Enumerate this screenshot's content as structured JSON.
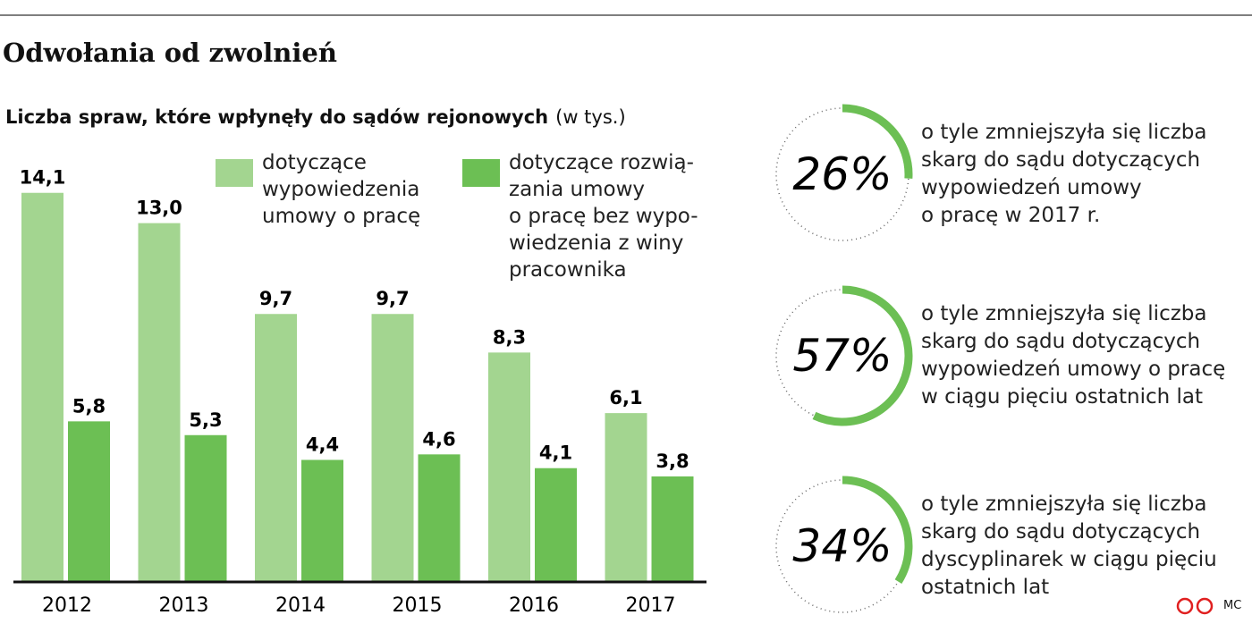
{
  "title": "Odwołania od zwolnień",
  "credit": "MC",
  "chart_data": [
    {
      "type": "bar",
      "title": "Liczba spraw, które wpłynęły do sądów rejonowych",
      "subtitle": "(w tys.)",
      "categories": [
        "2012",
        "2013",
        "2014",
        "2015",
        "2016",
        "2017"
      ],
      "series": [
        {
          "name": "dotyczące\nwypowiedzenia\numowy o pracę",
          "color": "#a3d590",
          "values": [
            14.1,
            13.0,
            9.7,
            9.7,
            8.3,
            6.1
          ],
          "value_labels": [
            "14,1",
            "13,0",
            "9,7",
            "9,7",
            "8,3",
            "6,1"
          ]
        },
        {
          "name": "dotyczące rozwią-\nzania umowy\no pracę bez wypo-\nwiedzenia z winy\npracownika",
          "color": "#6cbf54",
          "values": [
            5.8,
            5.3,
            4.4,
            4.6,
            4.1,
            3.8
          ],
          "value_labels": [
            "5,8",
            "5,3",
            "4,4",
            "4,6",
            "4,1",
            "3,8"
          ]
        }
      ],
      "ylim": [
        0,
        15
      ]
    },
    {
      "type": "donut",
      "color": "#6cbf54",
      "values": [
        26,
        57,
        34
      ],
      "value_labels": [
        "26%",
        "57%",
        "34%"
      ],
      "captions": [
        "o tyle zmniejszyła się liczba\nskarg do sądu dotyczących\nwypowiedzeń umowy\no pracę w 2017 r.",
        "o tyle zmniejszyła się liczba\nskarg do sądu dotyczących\nwypowiedzeń umowy o pracę\nw ciągu pięciu ostatnich lat",
        "o tyle zmniejszyła się liczba\nskarg do sądu dotyczących\ndyscyplinarek w ciągu pięciu\nostatnich lat"
      ]
    }
  ]
}
